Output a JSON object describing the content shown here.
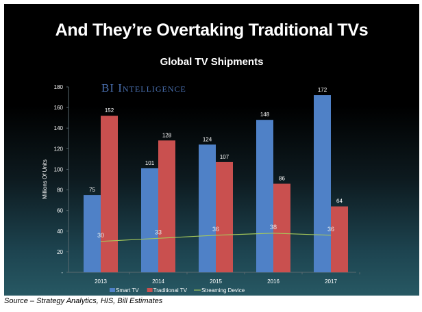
{
  "slide_title": "And They’re Overtaking Traditional TVs",
  "source_note": "Source – Strategy Analytics, HIS, Bill Estimates",
  "watermark": "BI Intelligence",
  "chart_data": {
    "type": "bar",
    "title": "Global TV Shipments",
    "ylabel": "Millions Of Units",
    "xlabel": "",
    "ylim": [
      0,
      180
    ],
    "yticks": [
      0,
      20,
      40,
      60,
      80,
      100,
      120,
      140,
      160,
      180
    ],
    "ytick_labels": [
      "-",
      "20",
      "40",
      "60",
      "80",
      "100",
      "120",
      "140",
      "160",
      "180"
    ],
    "categories": [
      "2013",
      "2014",
      "2015",
      "2016",
      "2017"
    ],
    "grid": false,
    "legend": "bottom",
    "series": [
      {
        "name": "Smart TV",
        "kind": "bar",
        "color": "#4f81c7",
        "values": [
          75,
          101,
          124,
          148,
          172
        ]
      },
      {
        "name": "Traditional TV",
        "kind": "bar",
        "color": "#c9504f",
        "values": [
          152,
          128,
          107,
          86,
          64
        ]
      },
      {
        "name": "Streaming Device",
        "kind": "line",
        "color": "#a6c85a",
        "values": [
          30,
          33,
          36,
          38,
          36
        ]
      }
    ]
  }
}
